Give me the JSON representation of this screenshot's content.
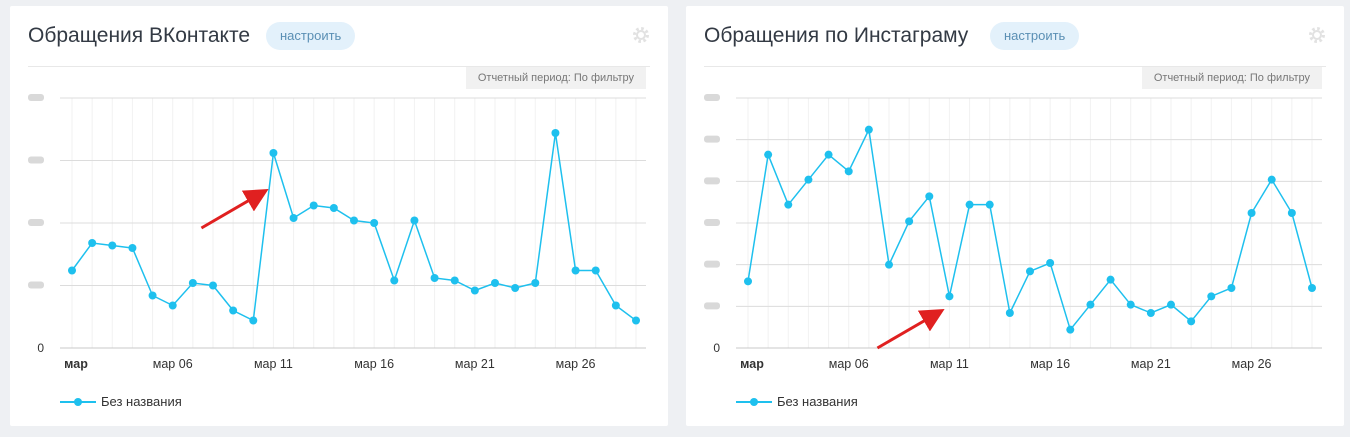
{
  "charts": [
    {
      "title": "Обращения ВКонтакте",
      "setup_label": "настроить",
      "period": "Отчетный период: По фильтру",
      "legend": "Без названия",
      "y_zero_label": "0",
      "x_ticks": [
        "мар",
        "мар 06",
        "мар 11",
        "мар 16",
        "мар 21",
        "мар 26"
      ],
      "x_tick_days": [
        1,
        6,
        11,
        16,
        21,
        26
      ],
      "arrow_target_day": 11,
      "arrow_target_value": 64
    },
    {
      "title": "Обращения по Инстаграму",
      "setup_label": "настроить",
      "period": "Отчетный период: По фильтру",
      "legend": "Без названия",
      "y_zero_label": "0",
      "x_ticks": [
        "мар",
        "мар 06",
        "мар 11",
        "мар 16",
        "мар 21",
        "мар 26"
      ],
      "x_tick_days": [
        1,
        6,
        11,
        16,
        21,
        26
      ],
      "arrow_target_day": 11,
      "arrow_target_value": 24
    }
  ],
  "colors": {
    "series": "#1ec0ee",
    "arrow": "#e02020",
    "grid": "#dcdcdc",
    "minor_grid": "#f2f2f2"
  },
  "chart_data": [
    {
      "type": "line",
      "title": "Обращения ВКонтакте",
      "x": [
        1,
        2,
        3,
        4,
        5,
        6,
        7,
        8,
        9,
        10,
        11,
        12,
        13,
        14,
        15,
        16,
        17,
        18,
        19,
        20,
        21,
        22,
        23,
        24,
        25,
        26,
        27,
        28,
        29
      ],
      "x_unit": "март, день",
      "series": [
        {
          "name": "Без названия",
          "values": [
            31,
            42,
            41,
            40,
            21,
            17,
            26,
            25,
            15,
            11,
            78,
            52,
            57,
            56,
            51,
            50,
            27,
            51,
            28,
            27,
            23,
            26,
            24,
            26,
            86,
            31,
            31,
            17,
            11
          ]
        }
      ],
      "ylim": [
        0,
        100
      ],
      "y_tick_values": [
        0,
        25,
        50,
        75,
        100
      ],
      "y_tick_labels_obscured": true,
      "legend_position": "bottom-left",
      "grid": true
    },
    {
      "type": "line",
      "title": "Обращения по Инстаграму",
      "x": [
        1,
        2,
        3,
        4,
        5,
        6,
        7,
        8,
        9,
        10,
        11,
        12,
        13,
        14,
        15,
        16,
        17,
        18,
        19,
        20,
        21,
        22,
        23,
        24,
        25,
        26,
        27,
        28,
        29
      ],
      "x_unit": "март, день",
      "series": [
        {
          "name": "Без названия",
          "values": [
            40,
            116,
            86,
            101,
            116,
            106,
            131,
            50,
            76,
            91,
            31,
            86,
            86,
            21,
            46,
            51,
            11,
            26,
            41,
            26,
            21,
            26,
            16,
            31,
            36,
            81,
            101,
            81,
            36
          ]
        }
      ],
      "ylim": [
        0,
        150
      ],
      "y_tick_values": [
        0,
        25,
        50,
        75,
        100,
        125,
        150
      ],
      "y_tick_labels_obscured": true,
      "legend_position": "bottom-left",
      "grid": true
    }
  ]
}
